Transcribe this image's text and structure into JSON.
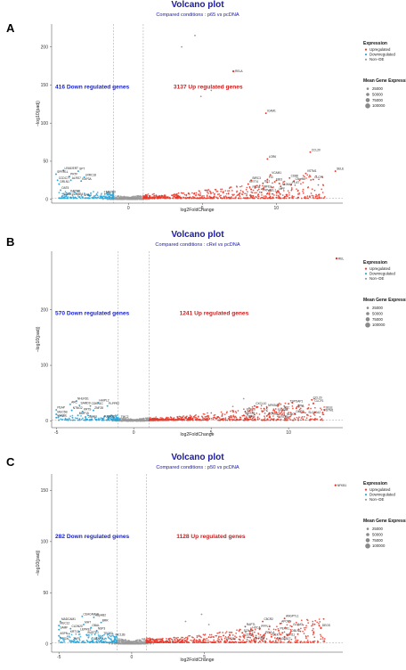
{
  "colors": {
    "up": "#e8392b",
    "down": "#2aa5d8",
    "nonde": "#9a9a9a",
    "title": "#1a1aa6",
    "down_text": "#1a24c9",
    "up_text": "#d01b1b"
  },
  "legend": {
    "expression_title": "Expression",
    "expression_items": [
      "Upregulated",
      "Downregulated",
      "Non−DE"
    ],
    "size_title": "Mean Gene Expression",
    "size_items": [
      "25000",
      "50000",
      "75000",
      "100000"
    ]
  },
  "chart_data": [
    {
      "panel_label": "A",
      "type": "scatter",
      "title": "Volcano plot",
      "subtitle": "Compared conditions : p65 vs pcDNA",
      "xlabel": "log2FoldChange",
      "ylabel": "−log10(padj)",
      "xlim": [
        -5.2,
        14.5
      ],
      "ylim": [
        -5,
        230
      ],
      "xticks": [
        0,
        5,
        10
      ],
      "yticks": [
        0,
        50,
        100,
        150,
        200
      ],
      "fc_thresholds": [
        -1,
        1
      ],
      "down_count_label": "416 Down regulated genes",
      "up_count_label": "3137 Up regulated genes",
      "highlight": {
        "x": 7.1,
        "y": 168,
        "label": "RELA"
      },
      "outliers": [
        [
          4.5,
          215
        ],
        [
          3.6,
          200
        ],
        [
          5.6,
          143
        ],
        [
          4.9,
          135
        ]
      ],
      "genes_up": [
        {
          "label": "ICAM1",
          "x": 9.3,
          "y": 113
        },
        {
          "label": "CCL20",
          "x": 12.3,
          "y": 62
        },
        {
          "label": "LGR6",
          "x": 9.4,
          "y": 53
        },
        {
          "label": "SELE",
          "x": 14.0,
          "y": 37
        },
        {
          "label": "VSTM1",
          "x": 12.0,
          "y": 34
        },
        {
          "label": "VCAM1",
          "x": 9.6,
          "y": 32
        },
        {
          "label": "CD88",
          "x": 10.9,
          "y": 28
        },
        {
          "label": "CLCF1",
          "x": 12.5,
          "y": 26
        },
        {
          "label": "BIRC3",
          "x": 8.3,
          "y": 25
        },
        {
          "label": "C5orf66",
          "x": 11.2,
          "y": 24
        },
        {
          "label": "EBI3",
          "x": 9.9,
          "y": 23
        },
        {
          "label": "PI3",
          "x": 9.4,
          "y": 26
        },
        {
          "label": "ISL1",
          "x": 9.1,
          "y": 21
        },
        {
          "label": "PLAT",
          "x": 11.0,
          "y": 19
        },
        {
          "label": "S100A3",
          "x": 10.3,
          "y": 17
        },
        {
          "label": "KRT74",
          "x": 8.1,
          "y": 20
        },
        {
          "label": "PADI4",
          "x": 8.3,
          "y": 13
        },
        {
          "label": "NFE1",
          "x": 9.1,
          "y": 14
        },
        {
          "label": "LIPF",
          "x": 10.1,
          "y": 11
        },
        {
          "label": "PRIVAEL1",
          "x": 9.0,
          "y": 9
        }
      ],
      "genes_down": [
        {
          "label": "LRAE/ERT",
          "x": -4.4,
          "y": 38
        },
        {
          "label": "SPT",
          "x": -3.4,
          "y": 37
        },
        {
          "label": "SPRR1L",
          "x": -4.9,
          "y": 33
        },
        {
          "label": "PRTF",
          "x": -4.0,
          "y": 30
        },
        {
          "label": "LRRC18",
          "x": -3.0,
          "y": 29
        },
        {
          "label": "CCDC77",
          "x": -4.8,
          "y": 25
        },
        {
          "label": "ALRS7",
          "x": -3.9,
          "y": 25
        },
        {
          "label": "KAP3A",
          "x": -3.2,
          "y": 24
        },
        {
          "label": "DRLN1",
          "x": -4.7,
          "y": 20
        },
        {
          "label": "OAT5",
          "x": -4.6,
          "y": 12
        },
        {
          "label": "KAPMB",
          "x": -4.0,
          "y": 8
        },
        {
          "label": "MEX3D",
          "x": -1.6,
          "y": 7
        },
        {
          "label": "NCAM1/LAMB4",
          "x": -4.5,
          "y": 4
        },
        {
          "label": "NFIL3",
          "x": -3.1,
          "y": 3
        }
      ]
    },
    {
      "panel_label": "B",
      "type": "scatter",
      "title": "Volcano plot",
      "subtitle": "Compared conditions : cRel vs pcDNA",
      "xlabel": "log2FoldChange",
      "ylabel": "−log10(padj)",
      "xlim": [
        -5.3,
        13.5
      ],
      "ylim": [
        -12,
        305
      ],
      "xticks": [
        -5,
        0,
        5,
        10
      ],
      "yticks": [
        0,
        100,
        200
      ],
      "fc_thresholds": [
        -1,
        1
      ],
      "down_count_label": "570 Down regulated genes",
      "up_count_label": "1241 Up regulated genes",
      "highlight": {
        "x": 13.1,
        "y": 292,
        "label": "REL"
      },
      "outliers": [
        [
          7.1,
          40
        ],
        [
          6.4,
          26
        ],
        [
          9.5,
          30
        ]
      ],
      "genes_up": [
        {
          "label": "CCL20",
          "x": 11.5,
          "y": 38
        },
        {
          "label": "CLCF1",
          "x": 11.6,
          "y": 32
        },
        {
          "label": "TSPOAP1",
          "x": 10.0,
          "y": 31
        },
        {
          "label": "SELE",
          "x": 12.3,
          "y": 20
        },
        {
          "label": "CXCL10",
          "x": 7.8,
          "y": 27
        },
        {
          "label": "NFKBIA",
          "x": 8.6,
          "y": 24
        },
        {
          "label": "ZPFL",
          "x": 10.5,
          "y": 23
        },
        {
          "label": "SOC",
          "x": 9.6,
          "y": 20
        },
        {
          "label": "VSTM1",
          "x": 12.2,
          "y": 15
        },
        {
          "label": "EGFL6",
          "x": 7.2,
          "y": 17
        },
        {
          "label": "IL6",
          "x": 8.3,
          "y": 17
        },
        {
          "label": "SLC1A4",
          "x": 9.2,
          "y": 16
        },
        {
          "label": "DMPS",
          "x": 10.4,
          "y": 13
        },
        {
          "label": "SLC10A2",
          "x": 11.2,
          "y": 11
        },
        {
          "label": "WNT2B",
          "x": 7.1,
          "y": 10
        },
        {
          "label": "KCNAB1",
          "x": 8.6,
          "y": 9
        },
        {
          "label": "NLRC5",
          "x": 9.8,
          "y": 8
        },
        {
          "label": "LTBR",
          "x": 7.2,
          "y": 4
        },
        {
          "label": "KRT73",
          "x": 9.3,
          "y": 3
        }
      ],
      "genes_down": [
        {
          "label": "NHLRD1",
          "x": -3.7,
          "y": 36
        },
        {
          "label": "HHIPL2",
          "x": -2.3,
          "y": 33
        },
        {
          "label": "ARC",
          "x": -4.1,
          "y": 30
        },
        {
          "label": "SAMD9",
          "x": -3.5,
          "y": 28
        },
        {
          "label": "CDKN1C",
          "x": -2.8,
          "y": 27
        },
        {
          "label": "PLPPR2",
          "x": -1.7,
          "y": 27
        },
        {
          "label": "PEAP",
          "x": -5.0,
          "y": 20
        },
        {
          "label": "NTNG2",
          "x": -4.0,
          "y": 19
        },
        {
          "label": "KRTS",
          "x": -3.3,
          "y": 17
        },
        {
          "label": "ZNF28",
          "x": -2.6,
          "y": 19
        },
        {
          "label": "MUC5B",
          "x": -5.0,
          "y": 12
        },
        {
          "label": "MMP15",
          "x": -3.6,
          "y": 10
        },
        {
          "label": "NAMBL",
          "x": -5.0,
          "y": 6
        },
        {
          "label": "ZNF27",
          "x": -3.0,
          "y": 3
        },
        {
          "label": "TUBA3D",
          "x": -2.0,
          "y": 4
        },
        {
          "label": "TMC2",
          "x": -0.9,
          "y": 3
        }
      ]
    },
    {
      "panel_label": "C",
      "type": "scatter",
      "title": "Volcano plot",
      "subtitle": "Compared conditions : p50 vs pcDNA",
      "xlabel": "log2FoldChange",
      "ylabel": "−log10(padj)",
      "xlim": [
        -5.5,
        14.5
      ],
      "ylim": [
        -8,
        166
      ],
      "xticks": [
        -5,
        0,
        5
      ],
      "yticks": [
        0,
        50,
        100,
        150
      ],
      "fc_thresholds": [
        -1,
        1
      ],
      "down_count_label": "282 Down regulated genes",
      "up_count_label": "1128 Up regulated genes",
      "highlight": {
        "x": 14.0,
        "y": 155,
        "label": "NFKB1"
      },
      "outliers": [
        [
          4.8,
          29
        ],
        [
          3.7,
          22
        ],
        [
          5.3,
          19
        ]
      ],
      "genes_up": [
        {
          "label": "ANGPTL1",
          "x": 10.5,
          "y": 25
        },
        {
          "label": "C5CR2",
          "x": 9.0,
          "y": 22
        },
        {
          "label": "APOPN",
          "x": 10.2,
          "y": 20
        },
        {
          "label": "GLYM3",
          "x": 11.0,
          "y": 17
        },
        {
          "label": "DEGS",
          "x": 13.0,
          "y": 16
        },
        {
          "label": "RAPTL",
          "x": 7.8,
          "y": 17
        },
        {
          "label": "HOCA",
          "x": 8.2,
          "y": 14
        },
        {
          "label": "PPPL1",
          "x": 8.8,
          "y": 15
        },
        {
          "label": "PEAR1",
          "x": 10.1,
          "y": 13
        },
        {
          "label": "SCN4A",
          "x": 7.6,
          "y": 11
        },
        {
          "label": "DBLN1",
          "x": 10.9,
          "y": 11
        },
        {
          "label": "PEVLA",
          "x": 9.1,
          "y": 9
        },
        {
          "label": "CDK9",
          "x": 7.7,
          "y": 7
        },
        {
          "label": "DEK",
          "x": 9.6,
          "y": 7
        },
        {
          "label": "SCN11",
          "x": 10.5,
          "y": 7
        },
        {
          "label": "DEGS4",
          "x": 6.4,
          "y": 3
        },
        {
          "label": "IL10RA",
          "x": 8.4,
          "y": 4
        },
        {
          "label": "MAGEB1T",
          "x": 9.9,
          "y": 3
        }
      ],
      "genes_down": [
        {
          "label": "CEACAM18",
          "x": -3.4,
          "y": 27
        },
        {
          "label": "HSpHB2",
          "x": -2.6,
          "y": 26
        },
        {
          "label": "MADCAM1",
          "x": -4.9,
          "y": 22
        },
        {
          "label": "BRR",
          "x": -2.1,
          "y": 21
        },
        {
          "label": "MUC12",
          "x": -5.0,
          "y": 18
        },
        {
          "label": "MHT",
          "x": -3.3,
          "y": 19
        },
        {
          "label": "SAMF",
          "x": -5.0,
          "y": 14
        },
        {
          "label": "CLDN20",
          "x": -4.2,
          "y": 15
        },
        {
          "label": "OBAL",
          "x": -2.8,
          "y": 16
        },
        {
          "label": "LEPRE2",
          "x": -3.6,
          "y": 12
        },
        {
          "label": "NSP3",
          "x": -2.4,
          "y": 13
        },
        {
          "label": "ASPN",
          "x": -5.0,
          "y": 8
        },
        {
          "label": "KRT13",
          "x": -4.3,
          "y": 10
        },
        {
          "label": "BUSTE1",
          "x": -3.1,
          "y": 9
        },
        {
          "label": "TECS2",
          "x": -2.0,
          "y": 8
        },
        {
          "label": "ISC12B",
          "x": -1.2,
          "y": 7
        },
        {
          "label": "PODXL",
          "x": -5.0,
          "y": 3
        },
        {
          "label": "ZNF5",
          "x": -4.1,
          "y": 3
        },
        {
          "label": "UBAP1L",
          "x": -2.7,
          "y": 3
        }
      ]
    }
  ]
}
